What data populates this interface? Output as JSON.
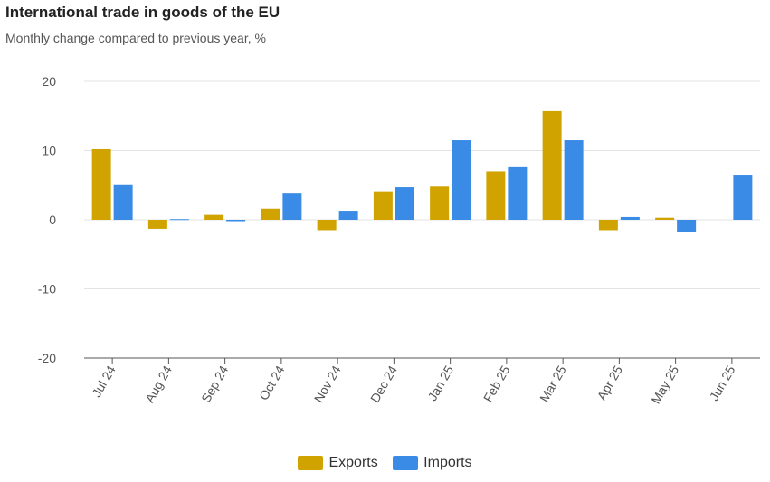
{
  "header": {
    "title": "International trade in goods of the EU",
    "subtitle": "Monthly change compared to previous year, %"
  },
  "colors": {
    "exports": "#d0a300",
    "imports": "#3a8be6",
    "grid": "#e3e3e3",
    "axis_text": "#555555"
  },
  "chart_data": {
    "type": "bar",
    "title": "International trade in goods of the EU",
    "subtitle": "Monthly change compared to previous year, %",
    "categories": [
      "Jul 24",
      "Aug 24",
      "Sep 24",
      "Oct 24",
      "Nov 24",
      "Dec 24",
      "Jan 25",
      "Feb 25",
      "Mar 25",
      "Apr 25",
      "May 25",
      "Jun 25"
    ],
    "series": [
      {
        "name": "Exports",
        "values": [
          10.2,
          -1.3,
          0.7,
          1.6,
          -1.5,
          4.1,
          4.8,
          7.0,
          15.7,
          -1.5,
          0.3,
          null
        ]
      },
      {
        "name": "Imports",
        "values": [
          5.0,
          0.1,
          -0.2,
          3.9,
          1.3,
          4.7,
          11.5,
          7.6,
          11.5,
          0.4,
          -1.7,
          6.4
        ]
      }
    ],
    "ylim": [
      -20,
      20
    ],
    "yticks": [
      "20",
      "10",
      "0",
      "-10",
      "-20"
    ],
    "grid": true,
    "legend_position": "bottom"
  },
  "legend": {
    "items": [
      {
        "label": "Exports"
      },
      {
        "label": "Imports"
      }
    ]
  }
}
